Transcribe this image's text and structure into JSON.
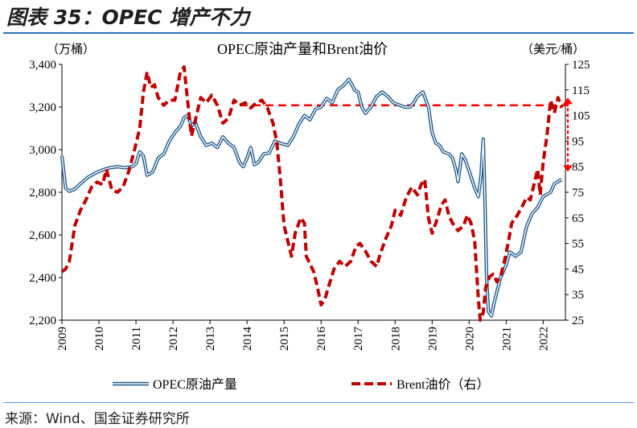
{
  "figure_title": "图表 35：OPEC 增产不力",
  "source_note": "来源：Wind、国金证券研究所",
  "colors": {
    "opec_line": "#1f5a8c",
    "opec_inner": "#ffffff",
    "brent_line": "#c00000",
    "reference_line": "#ff0000",
    "rule": "#2e75b6"
  },
  "chart_data": {
    "type": "line",
    "title": "OPEC原油产量和Brent油价",
    "y_left_unit": "（万桶）",
    "y_right_unit": "（美元/桶）",
    "x_range": [
      2009.0,
      2022.6
    ],
    "x_ticks": [
      "2009",
      "2010",
      "2011",
      "2012",
      "2013",
      "2014",
      "2015",
      "2016",
      "2017",
      "2018",
      "2019",
      "2020",
      "2021",
      "2022"
    ],
    "y_left_range": [
      2200,
      3400
    ],
    "y_left_ticks": [
      "2,200",
      "2,400",
      "2,600",
      "2,800",
      "3,000",
      "3,200",
      "3,400"
    ],
    "y_right_range": [
      25,
      125
    ],
    "y_right_ticks": [
      "25",
      "35",
      "45",
      "55",
      "65",
      "75",
      "85",
      "95",
      "105",
      "115",
      "125"
    ],
    "grid": false,
    "legend_position": "bottom",
    "reference_line_value": 109,
    "arrow_range": [
      83,
      112
    ],
    "series": [
      {
        "name": "OPEC原油产量",
        "axis": "left",
        "style": "double-line",
        "points": [
          [
            2009.0,
            2970
          ],
          [
            2009.1,
            2820
          ],
          [
            2009.2,
            2805
          ],
          [
            2009.35,
            2815
          ],
          [
            2009.5,
            2840
          ],
          [
            2009.7,
            2870
          ],
          [
            2009.9,
            2890
          ],
          [
            2010.1,
            2905
          ],
          [
            2010.3,
            2915
          ],
          [
            2010.5,
            2920
          ],
          [
            2010.7,
            2915
          ],
          [
            2010.9,
            2920
          ],
          [
            2011.0,
            2935
          ],
          [
            2011.1,
            2990
          ],
          [
            2011.2,
            2970
          ],
          [
            2011.3,
            2880
          ],
          [
            2011.45,
            2895
          ],
          [
            2011.6,
            2960
          ],
          [
            2011.75,
            2980
          ],
          [
            2011.9,
            3040
          ],
          [
            2012.05,
            3080
          ],
          [
            2012.2,
            3110
          ],
          [
            2012.3,
            3150
          ],
          [
            2012.4,
            3160
          ],
          [
            2012.5,
            3110
          ],
          [
            2012.6,
            3130
          ],
          [
            2012.75,
            3060
          ],
          [
            2012.9,
            3020
          ],
          [
            2013.05,
            3030
          ],
          [
            2013.2,
            3010
          ],
          [
            2013.35,
            3060
          ],
          [
            2013.5,
            3030
          ],
          [
            2013.65,
            3010
          ],
          [
            2013.8,
            2940
          ],
          [
            2013.9,
            2920
          ],
          [
            2014.0,
            2960
          ],
          [
            2014.1,
            3010
          ],
          [
            2014.2,
            2930
          ],
          [
            2014.3,
            2940
          ],
          [
            2014.45,
            2980
          ],
          [
            2014.6,
            2985
          ],
          [
            2014.75,
            3040
          ],
          [
            2014.9,
            3030
          ],
          [
            2015.1,
            3020
          ],
          [
            2015.25,
            3060
          ],
          [
            2015.4,
            3120
          ],
          [
            2015.55,
            3160
          ],
          [
            2015.7,
            3140
          ],
          [
            2015.85,
            3190
          ],
          [
            2016.0,
            3200
          ],
          [
            2016.15,
            3240
          ],
          [
            2016.3,
            3220
          ],
          [
            2016.45,
            3280
          ],
          [
            2016.6,
            3300
          ],
          [
            2016.75,
            3330
          ],
          [
            2016.85,
            3300
          ],
          [
            2016.9,
            3280
          ],
          [
            2017.0,
            3270
          ],
          [
            2017.1,
            3200
          ],
          [
            2017.2,
            3170
          ],
          [
            2017.35,
            3200
          ],
          [
            2017.5,
            3250
          ],
          [
            2017.65,
            3270
          ],
          [
            2017.8,
            3250
          ],
          [
            2017.95,
            3220
          ],
          [
            2018.1,
            3210
          ],
          [
            2018.25,
            3200
          ],
          [
            2018.4,
            3200
          ],
          [
            2018.5,
            3220
          ],
          [
            2018.6,
            3250
          ],
          [
            2018.75,
            3270
          ],
          [
            2018.9,
            3200
          ],
          [
            2019.0,
            3080
          ],
          [
            2019.1,
            3030
          ],
          [
            2019.2,
            3020
          ],
          [
            2019.3,
            2990
          ],
          [
            2019.45,
            2980
          ],
          [
            2019.55,
            2960
          ],
          [
            2019.65,
            2900
          ],
          [
            2019.7,
            2850
          ],
          [
            2019.8,
            2980
          ],
          [
            2019.9,
            2950
          ],
          [
            2020.0,
            2900
          ],
          [
            2020.15,
            2820
          ],
          [
            2020.25,
            2780
          ],
          [
            2020.32,
            2880
          ],
          [
            2020.38,
            3050
          ],
          [
            2020.42,
            2800
          ],
          [
            2020.47,
            2400
          ],
          [
            2020.52,
            2240
          ],
          [
            2020.6,
            2220
          ],
          [
            2020.7,
            2300
          ],
          [
            2020.85,
            2400
          ],
          [
            2021.0,
            2460
          ],
          [
            2021.1,
            2520
          ],
          [
            2021.25,
            2500
          ],
          [
            2021.4,
            2520
          ],
          [
            2021.55,
            2640
          ],
          [
            2021.7,
            2700
          ],
          [
            2021.85,
            2730
          ],
          [
            2022.0,
            2780
          ],
          [
            2022.1,
            2790
          ],
          [
            2022.2,
            2800
          ],
          [
            2022.3,
            2840
          ],
          [
            2022.4,
            2850
          ],
          [
            2022.5,
            2860
          ]
        ]
      },
      {
        "name": "Brent油价（右）",
        "axis": "right",
        "style": "dashed",
        "points": [
          [
            2009.0,
            44
          ],
          [
            2009.1,
            45
          ],
          [
            2009.2,
            48
          ],
          [
            2009.35,
            62
          ],
          [
            2009.5,
            68
          ],
          [
            2009.65,
            72
          ],
          [
            2009.8,
            77
          ],
          [
            2009.95,
            79
          ],
          [
            2010.1,
            78
          ],
          [
            2010.2,
            84
          ],
          [
            2010.35,
            76
          ],
          [
            2010.5,
            75
          ],
          [
            2010.65,
            77
          ],
          [
            2010.8,
            83
          ],
          [
            2010.95,
            91
          ],
          [
            2011.1,
            100
          ],
          [
            2011.2,
            114
          ],
          [
            2011.3,
            122
          ],
          [
            2011.4,
            116
          ],
          [
            2011.5,
            117
          ],
          [
            2011.6,
            112
          ],
          [
            2011.75,
            109
          ],
          [
            2011.9,
            111
          ],
          [
            2012.05,
            111
          ],
          [
            2012.2,
            122
          ],
          [
            2012.3,
            124
          ],
          [
            2012.4,
            110
          ],
          [
            2012.5,
            97
          ],
          [
            2012.6,
            103
          ],
          [
            2012.75,
            112
          ],
          [
            2012.9,
            110
          ],
          [
            2013.05,
            113
          ],
          [
            2013.2,
            109
          ],
          [
            2013.35,
            102
          ],
          [
            2013.5,
            104
          ],
          [
            2013.65,
            111
          ],
          [
            2013.8,
            109
          ],
          [
            2013.95,
            110
          ],
          [
            2014.1,
            108
          ],
          [
            2014.25,
            110
          ],
          [
            2014.4,
            111
          ],
          [
            2014.55,
            108
          ],
          [
            2014.7,
            102
          ],
          [
            2014.8,
            95
          ],
          [
            2014.9,
            80
          ],
          [
            2015.0,
            62
          ],
          [
            2015.1,
            56
          ],
          [
            2015.2,
            50
          ],
          [
            2015.3,
            59
          ],
          [
            2015.45,
            65
          ],
          [
            2015.55,
            63
          ],
          [
            2015.6,
            50
          ],
          [
            2015.7,
            47
          ],
          [
            2015.8,
            44
          ],
          [
            2015.9,
            38
          ],
          [
            2016.0,
            31
          ],
          [
            2016.1,
            33
          ],
          [
            2016.2,
            38
          ],
          [
            2016.35,
            45
          ],
          [
            2016.5,
            48
          ],
          [
            2016.65,
            46
          ],
          [
            2016.8,
            48
          ],
          [
            2016.95,
            54
          ],
          [
            2017.05,
            55
          ],
          [
            2017.2,
            52
          ],
          [
            2017.35,
            48
          ],
          [
            2017.5,
            46
          ],
          [
            2017.6,
            51
          ],
          [
            2017.75,
            57
          ],
          [
            2017.9,
            62
          ],
          [
            2018.0,
            68
          ],
          [
            2018.15,
            66
          ],
          [
            2018.3,
            73
          ],
          [
            2018.45,
            77
          ],
          [
            2018.6,
            74
          ],
          [
            2018.7,
            78
          ],
          [
            2018.8,
            80
          ],
          [
            2018.9,
            65
          ],
          [
            2019.0,
            59
          ],
          [
            2019.1,
            63
          ],
          [
            2019.25,
            70
          ],
          [
            2019.35,
            72
          ],
          [
            2019.45,
            66
          ],
          [
            2019.55,
            63
          ],
          [
            2019.7,
            60
          ],
          [
            2019.85,
            62
          ],
          [
            2019.95,
            66
          ],
          [
            2020.05,
            63
          ],
          [
            2020.15,
            56
          ],
          [
            2020.25,
            33
          ],
          [
            2020.3,
            25
          ],
          [
            2020.38,
            28
          ],
          [
            2020.45,
            38
          ],
          [
            2020.55,
            42
          ],
          [
            2020.65,
            43
          ],
          [
            2020.75,
            40
          ],
          [
            2020.85,
            42
          ],
          [
            2020.95,
            48
          ],
          [
            2021.05,
            55
          ],
          [
            2021.15,
            63
          ],
          [
            2021.3,
            66
          ],
          [
            2021.45,
            70
          ],
          [
            2021.55,
            73
          ],
          [
            2021.65,
            72
          ],
          [
            2021.75,
            78
          ],
          [
            2021.85,
            84
          ],
          [
            2021.92,
            74
          ],
          [
            2022.0,
            87
          ],
          [
            2022.1,
            97
          ],
          [
            2022.2,
            111
          ],
          [
            2022.3,
            106
          ],
          [
            2022.4,
            112
          ],
          [
            2022.5,
            108
          ]
        ]
      }
    ]
  }
}
